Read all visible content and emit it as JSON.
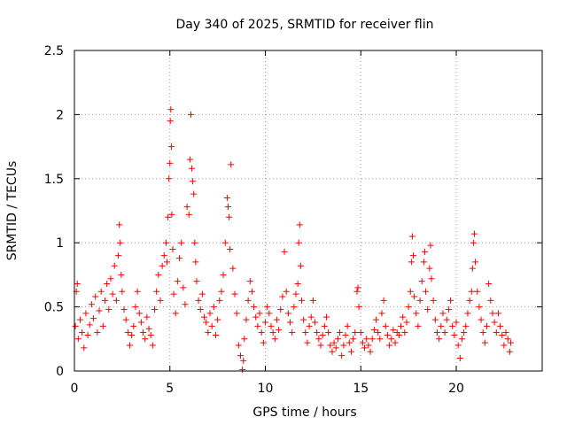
{
  "chart_data": {
    "type": "scatter",
    "title": "Day 340 of 2025, SRMTID for receiver flin",
    "xlabel": "GPS time / hours",
    "ylabel": "SRMTID / TECUs",
    "xlim": [
      0,
      24.5
    ],
    "ylim": [
      0,
      2.5
    ],
    "x_ticks": [
      0,
      5,
      10,
      15,
      20
    ],
    "y_ticks": [
      0,
      0.5,
      1,
      1.5,
      2,
      2.5
    ],
    "x_tick_labels": [
      "0",
      "5",
      "10",
      "15",
      "20"
    ],
    "y_tick_labels": [
      "0",
      "0.5",
      "1",
      "1.5",
      "2",
      "2.5"
    ],
    "grid": true,
    "marker": "plus",
    "marker_color": "#ff0000",
    "series": [
      {
        "name": "SRMTID",
        "points": [
          [
            0.05,
            0.35
          ],
          [
            0.1,
            0.62
          ],
          [
            0.15,
            0.68
          ],
          [
            0.2,
            0.25
          ],
          [
            0.3,
            0.4
          ],
          [
            0.4,
            0.3
          ],
          [
            0.5,
            0.18
          ],
          [
            0.6,
            0.45
          ],
          [
            0.7,
            0.28
          ],
          [
            0.8,
            0.36
          ],
          [
            0.9,
            0.52
          ],
          [
            1.0,
            0.41
          ],
          [
            1.1,
            0.58
          ],
          [
            1.2,
            0.3
          ],
          [
            1.3,
            0.47
          ],
          [
            1.4,
            0.62
          ],
          [
            1.5,
            0.35
          ],
          [
            1.6,
            0.55
          ],
          [
            1.7,
            0.68
          ],
          [
            1.8,
            0.48
          ],
          [
            1.9,
            0.72
          ],
          [
            2.0,
            0.6
          ],
          [
            2.1,
            0.82
          ],
          [
            2.2,
            0.55
          ],
          [
            2.3,
            0.9
          ],
          [
            2.35,
            1.14
          ],
          [
            2.4,
            1.0
          ],
          [
            2.45,
            0.75
          ],
          [
            2.5,
            0.62
          ],
          [
            2.6,
            0.48
          ],
          [
            2.7,
            0.4
          ],
          [
            2.8,
            0.3
          ],
          [
            2.9,
            0.2
          ],
          [
            3.0,
            0.28
          ],
          [
            3.1,
            0.35
          ],
          [
            3.2,
            0.5
          ],
          [
            3.3,
            0.62
          ],
          [
            3.4,
            0.45
          ],
          [
            3.5,
            0.38
          ],
          [
            3.6,
            0.3
          ],
          [
            3.7,
            0.25
          ],
          [
            3.8,
            0.42
          ],
          [
            3.9,
            0.33
          ],
          [
            4.0,
            0.28
          ],
          [
            4.1,
            0.2
          ],
          [
            4.2,
            0.48
          ],
          [
            4.3,
            0.62
          ],
          [
            4.4,
            0.75
          ],
          [
            4.5,
            0.55
          ],
          [
            4.6,
            0.82
          ],
          [
            4.7,
            0.9
          ],
          [
            4.8,
            1.0
          ],
          [
            4.85,
            0.85
          ],
          [
            4.9,
            1.2
          ],
          [
            4.95,
            1.5
          ],
          [
            5.0,
            1.62
          ],
          [
            5.02,
            1.95
          ],
          [
            5.05,
            2.04
          ],
          [
            5.08,
            1.75
          ],
          [
            5.1,
            1.22
          ],
          [
            5.15,
            0.95
          ],
          [
            5.2,
            0.6
          ],
          [
            5.3,
            0.45
          ],
          [
            5.4,
            0.7
          ],
          [
            5.5,
            0.88
          ],
          [
            5.6,
            1.0
          ],
          [
            5.7,
            0.65
          ],
          [
            5.8,
            0.52
          ],
          [
            5.9,
            1.28
          ],
          [
            6.0,
            1.22
          ],
          [
            6.05,
            1.65
          ],
          [
            6.1,
            2.0
          ],
          [
            6.15,
            1.58
          ],
          [
            6.2,
            1.48
          ],
          [
            6.25,
            1.38
          ],
          [
            6.3,
            1.0
          ],
          [
            6.35,
            0.85
          ],
          [
            6.4,
            0.7
          ],
          [
            6.5,
            0.55
          ],
          [
            6.6,
            0.48
          ],
          [
            6.7,
            0.6
          ],
          [
            6.8,
            0.42
          ],
          [
            6.9,
            0.38
          ],
          [
            7.0,
            0.3
          ],
          [
            7.1,
            0.45
          ],
          [
            7.2,
            0.35
          ],
          [
            7.3,
            0.5
          ],
          [
            7.4,
            0.28
          ],
          [
            7.5,
            0.4
          ],
          [
            7.6,
            0.55
          ],
          [
            7.7,
            0.62
          ],
          [
            7.8,
            0.75
          ],
          [
            7.9,
            1.0
          ],
          [
            8.0,
            1.35
          ],
          [
            8.05,
            1.28
          ],
          [
            8.1,
            1.2
          ],
          [
            8.15,
            0.95
          ],
          [
            8.2,
            1.61
          ],
          [
            8.3,
            0.8
          ],
          [
            8.4,
            0.6
          ],
          [
            8.5,
            0.45
          ],
          [
            8.6,
            0.2
          ],
          [
            8.7,
            0.12
          ],
          [
            8.8,
            0.01
          ],
          [
            8.85,
            0.08
          ],
          [
            8.9,
            0.25
          ],
          [
            9.0,
            0.4
          ],
          [
            9.1,
            0.55
          ],
          [
            9.2,
            0.7
          ],
          [
            9.3,
            0.62
          ],
          [
            9.4,
            0.5
          ],
          [
            9.5,
            0.42
          ],
          [
            9.6,
            0.35
          ],
          [
            9.7,
            0.45
          ],
          [
            9.8,
            0.3
          ],
          [
            9.9,
            0.22
          ],
          [
            10.0,
            0.38
          ],
          [
            10.1,
            0.5
          ],
          [
            10.2,
            0.45
          ],
          [
            10.3,
            0.35
          ],
          [
            10.4,
            0.3
          ],
          [
            10.5,
            0.25
          ],
          [
            10.6,
            0.4
          ],
          [
            10.7,
            0.32
          ],
          [
            10.8,
            0.48
          ],
          [
            10.9,
            0.58
          ],
          [
            11.0,
            0.93
          ],
          [
            11.1,
            0.62
          ],
          [
            11.2,
            0.45
          ],
          [
            11.3,
            0.38
          ],
          [
            11.4,
            0.3
          ],
          [
            11.5,
            0.5
          ],
          [
            11.6,
            0.6
          ],
          [
            11.7,
            0.68
          ],
          [
            11.75,
            1.0
          ],
          [
            11.8,
            1.14
          ],
          [
            11.85,
            0.82
          ],
          [
            11.9,
            0.55
          ],
          [
            12.0,
            0.4
          ],
          [
            12.1,
            0.3
          ],
          [
            12.2,
            0.22
          ],
          [
            12.3,
            0.35
          ],
          [
            12.4,
            0.42
          ],
          [
            12.5,
            0.55
          ],
          [
            12.6,
            0.38
          ],
          [
            12.7,
            0.3
          ],
          [
            12.8,
            0.25
          ],
          [
            12.9,
            0.2
          ],
          [
            13.0,
            0.28
          ],
          [
            13.1,
            0.35
          ],
          [
            13.2,
            0.42
          ],
          [
            13.3,
            0.3
          ],
          [
            13.4,
            0.2
          ],
          [
            13.5,
            0.15
          ],
          [
            13.6,
            0.22
          ],
          [
            13.7,
            0.18
          ],
          [
            13.8,
            0.25
          ],
          [
            13.9,
            0.3
          ],
          [
            14.0,
            0.12
          ],
          [
            14.1,
            0.2
          ],
          [
            14.2,
            0.28
          ],
          [
            14.3,
            0.35
          ],
          [
            14.4,
            0.22
          ],
          [
            14.5,
            0.15
          ],
          [
            14.6,
            0.25
          ],
          [
            14.7,
            0.3
          ],
          [
            14.8,
            0.62
          ],
          [
            14.85,
            0.65
          ],
          [
            14.9,
            0.5
          ],
          [
            15.0,
            0.3
          ],
          [
            15.1,
            0.22
          ],
          [
            15.2,
            0.18
          ],
          [
            15.3,
            0.25
          ],
          [
            15.4,
            0.2
          ],
          [
            15.5,
            0.15
          ],
          [
            15.6,
            0.25
          ],
          [
            15.7,
            0.32
          ],
          [
            15.8,
            0.4
          ],
          [
            15.9,
            0.3
          ],
          [
            16.0,
            0.25
          ],
          [
            16.1,
            0.45
          ],
          [
            16.2,
            0.55
          ],
          [
            16.3,
            0.35
          ],
          [
            16.4,
            0.28
          ],
          [
            16.5,
            0.2
          ],
          [
            16.6,
            0.25
          ],
          [
            16.7,
            0.32
          ],
          [
            16.8,
            0.22
          ],
          [
            16.9,
            0.3
          ],
          [
            17.0,
            0.28
          ],
          [
            17.1,
            0.35
          ],
          [
            17.2,
            0.42
          ],
          [
            17.3,
            0.3
          ],
          [
            17.4,
            0.38
          ],
          [
            17.5,
            0.5
          ],
          [
            17.6,
            0.62
          ],
          [
            17.65,
            0.85
          ],
          [
            17.7,
            1.05
          ],
          [
            17.75,
            0.9
          ],
          [
            17.8,
            0.58
          ],
          [
            17.9,
            0.45
          ],
          [
            18.0,
            0.35
          ],
          [
            18.1,
            0.55
          ],
          [
            18.2,
            0.7
          ],
          [
            18.3,
            0.85
          ],
          [
            18.35,
            0.93
          ],
          [
            18.4,
            0.62
          ],
          [
            18.5,
            0.48
          ],
          [
            18.6,
            0.8
          ],
          [
            18.65,
            0.98
          ],
          [
            18.7,
            0.72
          ],
          [
            18.8,
            0.55
          ],
          [
            18.9,
            0.4
          ],
          [
            19.0,
            0.3
          ],
          [
            19.1,
            0.25
          ],
          [
            19.2,
            0.35
          ],
          [
            19.3,
            0.45
          ],
          [
            19.4,
            0.3
          ],
          [
            19.5,
            0.4
          ],
          [
            19.6,
            0.48
          ],
          [
            19.7,
            0.55
          ],
          [
            19.8,
            0.35
          ],
          [
            19.9,
            0.28
          ],
          [
            20.0,
            0.38
          ],
          [
            20.1,
            0.2
          ],
          [
            20.2,
            0.1
          ],
          [
            20.3,
            0.25
          ],
          [
            20.4,
            0.3
          ],
          [
            20.5,
            0.35
          ],
          [
            20.6,
            0.45
          ],
          [
            20.7,
            0.55
          ],
          [
            20.8,
            0.62
          ],
          [
            20.85,
            0.8
          ],
          [
            20.9,
            1.0
          ],
          [
            20.95,
            1.07
          ],
          [
            21.0,
            0.85
          ],
          [
            21.1,
            0.62
          ],
          [
            21.2,
            0.5
          ],
          [
            21.3,
            0.4
          ],
          [
            21.4,
            0.3
          ],
          [
            21.5,
            0.22
          ],
          [
            21.6,
            0.35
          ],
          [
            21.7,
            0.68
          ],
          [
            21.8,
            0.55
          ],
          [
            21.9,
            0.45
          ],
          [
            22.0,
            0.38
          ],
          [
            22.1,
            0.3
          ],
          [
            22.2,
            0.45
          ],
          [
            22.3,
            0.35
          ],
          [
            22.4,
            0.28
          ],
          [
            22.5,
            0.2
          ],
          [
            22.6,
            0.3
          ],
          [
            22.7,
            0.25
          ],
          [
            22.8,
            0.15
          ],
          [
            22.85,
            0.22
          ]
        ]
      }
    ]
  }
}
